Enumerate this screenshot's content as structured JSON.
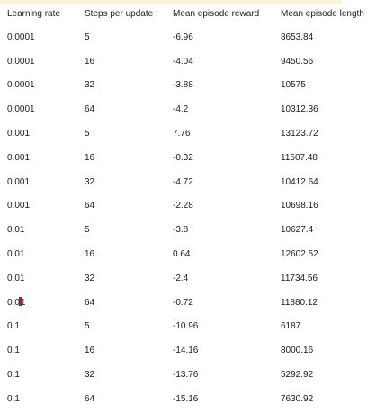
{
  "table": {
    "columns": [
      "Learning rate",
      "Steps per update",
      "Mean episode reward",
      "Mean episode length"
    ],
    "rows": [
      [
        "0.0001",
        "5",
        "-6.96",
        "8653.84"
      ],
      [
        "0.0001",
        "16",
        "-4.04",
        "9450.56"
      ],
      [
        "0.0001",
        "32",
        "-3.88",
        "10575"
      ],
      [
        "0.0001",
        "64",
        "-4.2",
        "10312.36"
      ],
      [
        "0.001",
        "5",
        "7.76",
        "13123.72"
      ],
      [
        "0.001",
        "16",
        "-0.32",
        "11507.48"
      ],
      [
        "0.001",
        "32",
        "-4.72",
        "10412.64"
      ],
      [
        "0.001",
        "64",
        "-2.28",
        "10698.16"
      ],
      [
        "0.01",
        "5",
        "-3.8",
        "10627.4"
      ],
      [
        "0.01",
        "16",
        "0.64",
        "12602.52"
      ],
      [
        "0.01",
        "32",
        "-2.4",
        "11734.56"
      ],
      [
        "0.01",
        "64",
        "-0.72",
        "11880.12"
      ],
      [
        "0.1",
        "5",
        "-10.96",
        "6187"
      ],
      [
        "0.1",
        "16",
        "-14.16",
        "8000.16"
      ],
      [
        "0.1",
        "32",
        "-13.76",
        "5292.92"
      ],
      [
        "0.1",
        "64",
        "-15.16",
        "7630.92"
      ]
    ]
  },
  "cursor_color": "#b0125f",
  "highlight_color": "#fbf3dc"
}
